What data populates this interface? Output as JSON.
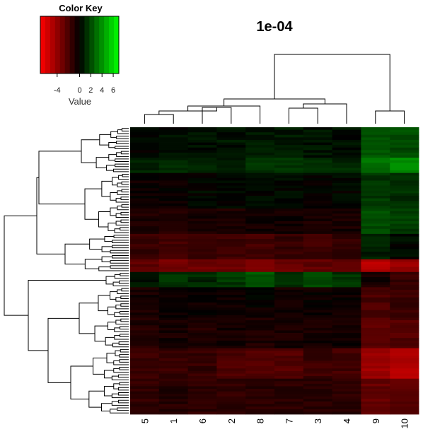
{
  "chart_data": {
    "type": "heatmap",
    "title": "1e-04",
    "color_key": {
      "title": "Color Key",
      "xlabel": "Value",
      "ticks": [
        "-4",
        "0",
        "2",
        "4",
        "6"
      ],
      "tick_values": [
        -4,
        0,
        2,
        4,
        6
      ],
      "range": [
        -7,
        7
      ],
      "low_color": "#ff0000",
      "mid_color": "#000000",
      "high_color": "#00ff00"
    },
    "columns": [
      "5",
      "1",
      "6",
      "2",
      "8",
      "7",
      "3",
      "4",
      "9",
      "10"
    ],
    "column_groups": [
      {
        "members": [
          "5",
          "1",
          "6",
          "2",
          "8",
          "7",
          "3",
          "4"
        ]
      },
      {
        "members": [
          "9",
          "10"
        ]
      }
    ],
    "row_block_profiles": [
      {
        "rows": 12,
        "values": [
          0.1,
          0.3,
          0.4,
          0.5,
          0.6,
          0.7,
          0.5,
          0.4,
          2.3,
          2.0
        ]
      },
      {
        "rows": 6,
        "values": [
          0.8,
          1.0,
          1.2,
          0.9,
          1.5,
          1.3,
          1.1,
          1.0,
          3.0,
          3.8
        ]
      },
      {
        "rows": 14,
        "values": [
          -0.3,
          -0.2,
          0.1,
          0.0,
          0.1,
          0.2,
          0.0,
          0.1,
          1.5,
          1.2
        ]
      },
      {
        "rows": 10,
        "values": [
          -0.8,
          -0.9,
          -0.6,
          -0.7,
          -0.5,
          -0.5,
          -0.7,
          -0.6,
          2.0,
          1.6
        ]
      },
      {
        "rows": 10,
        "values": [
          -1.5,
          -1.9,
          -1.4,
          -1.6,
          -1.8,
          -1.5,
          -1.6,
          -1.4,
          0.8,
          0.2
        ]
      },
      {
        "rows": 5,
        "values": [
          -2.5,
          -3.2,
          -3.0,
          -2.8,
          -3.4,
          -3.0,
          -2.6,
          -2.7,
          -5.0,
          -4.2
        ]
      },
      {
        "rows": 6,
        "values": [
          0.4,
          1.3,
          1.0,
          1.5,
          2.5,
          1.2,
          2.0,
          1.4,
          -0.5,
          -1.5
        ]
      },
      {
        "rows": 12,
        "values": [
          -0.6,
          -0.4,
          -0.3,
          -0.4,
          -0.2,
          -0.5,
          -0.3,
          -0.3,
          -2.0,
          -1.6
        ]
      },
      {
        "rows": 12,
        "values": [
          -0.9,
          -0.6,
          -0.8,
          -0.5,
          -0.8,
          -0.6,
          -0.5,
          -0.4,
          -2.5,
          -2.2
        ]
      },
      {
        "rows": 12,
        "values": [
          -1.6,
          -1.5,
          -1.4,
          -2.0,
          -2.2,
          -2.3,
          -1.6,
          -1.8,
          -4.2,
          -4.8
        ]
      },
      {
        "rows": 14,
        "values": [
          -1.3,
          -1.0,
          -1.2,
          -1.3,
          -1.1,
          -1.1,
          -1.0,
          -1.2,
          -2.7,
          -2.4
        ]
      }
    ]
  }
}
